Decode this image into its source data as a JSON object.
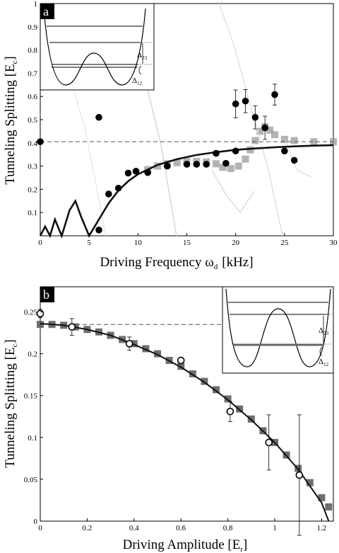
{
  "chart_data": [
    {
      "panel": "a",
      "type": "scatter",
      "xlabel": "Driving Frequency ω",
      "xlabel_sub": "d",
      "xlabel_unit": "[kHz]",
      "ylabel": "Tunneling Splitting [E",
      "ylabel_sub": "c",
      "ylabel_end": "]",
      "xlim": [
        0,
        30
      ],
      "ylim": [
        0,
        1
      ],
      "xticks": [
        "0",
        "5",
        "10",
        "15",
        "20",
        "25",
        "30"
      ],
      "yticks": [
        "0.1",
        "0.2",
        "0.3",
        "0.4",
        "0.5",
        "0.6",
        "0.7",
        "0.8",
        "0.9",
        "1"
      ],
      "dashed_reference_y": 0.405,
      "series": [
        {
          "values": [
            {
              "x": 0,
              "y": 0.405
            },
            {
              "x": 6.0,
              "y": 0.51
            },
            {
              "x": 6.0,
              "y": 0.025
            },
            {
              "x": 7.0,
              "y": 0.18
            },
            {
              "x": 8.0,
              "y": 0.205
            },
            {
              "x": 9.0,
              "y": 0.27
            },
            {
              "x": 9.8,
              "y": 0.278
            },
            {
              "x": 11.0,
              "y": 0.272
            },
            {
              "x": 13.0,
              "y": 0.3
            },
            {
              "x": 15.0,
              "y": 0.308
            },
            {
              "x": 16.0,
              "y": 0.308
            },
            {
              "x": 17.0,
              "y": 0.308
            },
            {
              "x": 18.0,
              "y": 0.355
            },
            {
              "x": 19.0,
              "y": 0.312
            },
            {
              "x": 20.0,
              "y": 0.365
            },
            {
              "x": 20.0,
              "y": 0.568
            },
            {
              "x": 21.0,
              "y": 0.58
            },
            {
              "x": 22.0,
              "y": 0.51
            },
            {
              "x": 23.0,
              "y": 0.465
            },
            {
              "x": 24.0,
              "y": 0.608
            },
            {
              "x": 25.0,
              "y": 0.365
            },
            {
              "x": 26.0,
              "y": 0.325
            }
          ],
          "error_bars": [
            {
              "x": 20.0,
              "y": 0.568,
              "err": 0.06
            },
            {
              "x": 21.0,
              "y": 0.58,
              "err": 0.05
            },
            {
              "x": 22.0,
              "y": 0.51,
              "err": 0.05
            },
            {
              "x": 23.0,
              "y": 0.465,
              "err": 0.05
            },
            {
              "x": 24.0,
              "y": 0.608,
              "err": 0.045
            }
          ]
        },
        {
          "curve": [
            {
              "x": 0.0,
              "y": 0.0
            },
            {
              "x": 0.5,
              "y": 0.04
            },
            {
              "x": 1.0,
              "y": 0.0
            },
            {
              "x": 1.5,
              "y": 0.07
            },
            {
              "x": 2.2,
              "y": 0.0
            },
            {
              "x": 3.0,
              "y": 0.11
            },
            {
              "x": 3.6,
              "y": 0.15
            },
            {
              "x": 4.2,
              "y": 0.08
            },
            {
              "x": 5.0,
              "y": 0.0
            },
            {
              "x": 6.0,
              "y": 0.07
            },
            {
              "x": 7.0,
              "y": 0.14
            },
            {
              "x": 8.0,
              "y": 0.195
            },
            {
              "x": 9.0,
              "y": 0.235
            },
            {
              "x": 10.0,
              "y": 0.265
            },
            {
              "x": 12.0,
              "y": 0.305
            },
            {
              "x": 14.0,
              "y": 0.33
            },
            {
              "x": 16.0,
              "y": 0.348
            },
            {
              "x": 18.0,
              "y": 0.36
            },
            {
              "x": 20.0,
              "y": 0.37
            },
            {
              "x": 22.0,
              "y": 0.376
            },
            {
              "x": 24.0,
              "y": 0.381
            },
            {
              "x": 26.0,
              "y": 0.385
            },
            {
              "x": 28.0,
              "y": 0.388
            },
            {
              "x": 30.0,
              "y": 0.39
            }
          ]
        },
        {
          "shaded_band": [
            {
              "x": 11.0,
              "y": 0.285
            },
            {
              "x": 12.0,
              "y": 0.3
            },
            {
              "x": 13.0,
              "y": 0.31
            },
            {
              "x": 14.0,
              "y": 0.315
            },
            {
              "x": 15.0,
              "y": 0.32
            },
            {
              "x": 16.0,
              "y": 0.32
            },
            {
              "x": 17.0,
              "y": 0.318
            },
            {
              "x": 18.0,
              "y": 0.31
            },
            {
              "x": 18.7,
              "y": 0.295
            },
            {
              "x": 19.5,
              "y": 0.29
            },
            {
              "x": 20.3,
              "y": 0.3
            },
            {
              "x": 21.0,
              "y": 0.33
            },
            {
              "x": 21.5,
              "y": 0.37
            },
            {
              "x": 22.0,
              "y": 0.41
            },
            {
              "x": 22.5,
              "y": 0.45
            },
            {
              "x": 23.0,
              "y": 0.47
            },
            {
              "x": 23.5,
              "y": 0.455
            },
            {
              "x": 24.0,
              "y": 0.435
            },
            {
              "x": 25.0,
              "y": 0.415
            },
            {
              "x": 26.0,
              "y": 0.41
            },
            {
              "x": 28.0,
              "y": 0.405
            },
            {
              "x": 30.0,
              "y": 0.405
            }
          ]
        }
      ],
      "inset_labels": [
        "Δ",
        "23",
        "Δ",
        "12"
      ]
    },
    {
      "panel": "b",
      "type": "scatter",
      "xlabel": "Driving Amplitude [E",
      "xlabel_sub": "r",
      "xlabel_end": "]",
      "ylabel": "Tunneling Splitting [E",
      "ylabel_sub": "c",
      "ylabel_end": "]",
      "xlim": [
        0,
        1.25
      ],
      "ylim": [
        0,
        0.28
      ],
      "xticks": [
        "0",
        "0.2",
        "0.4",
        "0.6",
        "0.8",
        "1",
        "1.2"
      ],
      "yticks": [
        "0",
        "0.05",
        "0.1",
        "0.15",
        "0.2",
        "0.25"
      ],
      "dashed_reference_y": 0.235,
      "series": [
        {
          "marker": "open-circle",
          "values": [
            {
              "x": 0.0,
              "y": 0.248
            },
            {
              "x": 0.135,
              "y": 0.232
            },
            {
              "x": 0.38,
              "y": 0.212
            },
            {
              "x": 0.6,
              "y": 0.192
            },
            {
              "x": 0.81,
              "y": 0.131
            },
            {
              "x": 0.975,
              "y": 0.094
            },
            {
              "x": 1.105,
              "y": 0.055
            }
          ],
          "error_bars": [
            {
              "x": 0.0,
              "y": 0.248,
              "err": 0.005
            },
            {
              "x": 0.135,
              "y": 0.232,
              "err": 0.01
            },
            {
              "x": 0.38,
              "y": 0.212,
              "err": 0.008
            },
            {
              "x": 0.81,
              "y": 0.131,
              "err": 0.012
            },
            {
              "x": 0.975,
              "y": 0.094,
              "err": 0.033
            },
            {
              "x": 1.105,
              "y": 0.055,
              "err": 0.072
            }
          ]
        },
        {
          "curve": [
            {
              "x": 0.0,
              "y": 0.236
            },
            {
              "x": 0.1,
              "y": 0.234
            },
            {
              "x": 0.2,
              "y": 0.229
            },
            {
              "x": 0.3,
              "y": 0.222
            },
            {
              "x": 0.4,
              "y": 0.211
            },
            {
              "x": 0.5,
              "y": 0.199
            },
            {
              "x": 0.6,
              "y": 0.184
            },
            {
              "x": 0.7,
              "y": 0.166
            },
            {
              "x": 0.8,
              "y": 0.145
            },
            {
              "x": 0.9,
              "y": 0.121
            },
            {
              "x": 1.0,
              "y": 0.094
            },
            {
              "x": 1.1,
              "y": 0.062
            },
            {
              "x": 1.2,
              "y": 0.022
            },
            {
              "x": 1.23,
              "y": 0.0
            }
          ]
        },
        {
          "shaded_band": [
            {
              "x": 0.0,
              "y": 0.235
            },
            {
              "x": 0.05,
              "y": 0.235
            },
            {
              "x": 0.1,
              "y": 0.234
            },
            {
              "x": 0.15,
              "y": 0.232
            },
            {
              "x": 0.2,
              "y": 0.229
            },
            {
              "x": 0.25,
              "y": 0.226
            },
            {
              "x": 0.3,
              "y": 0.222
            },
            {
              "x": 0.35,
              "y": 0.217
            },
            {
              "x": 0.4,
              "y": 0.212
            },
            {
              "x": 0.45,
              "y": 0.206
            },
            {
              "x": 0.5,
              "y": 0.2
            },
            {
              "x": 0.55,
              "y": 0.192
            },
            {
              "x": 0.6,
              "y": 0.185
            },
            {
              "x": 0.65,
              "y": 0.176
            },
            {
              "x": 0.7,
              "y": 0.167
            },
            {
              "x": 0.75,
              "y": 0.157
            },
            {
              "x": 0.8,
              "y": 0.146
            },
            {
              "x": 0.85,
              "y": 0.134
            },
            {
              "x": 0.9,
              "y": 0.122
            },
            {
              "x": 0.95,
              "y": 0.108
            },
            {
              "x": 1.0,
              "y": 0.094
            },
            {
              "x": 1.05,
              "y": 0.079
            },
            {
              "x": 1.1,
              "y": 0.063
            },
            {
              "x": 1.15,
              "y": 0.046
            },
            {
              "x": 1.2,
              "y": 0.028
            },
            {
              "x": 1.23,
              "y": 0.017
            }
          ]
        }
      ],
      "inset_labels": [
        "Δ",
        "23",
        "Δ",
        "12"
      ]
    }
  ]
}
